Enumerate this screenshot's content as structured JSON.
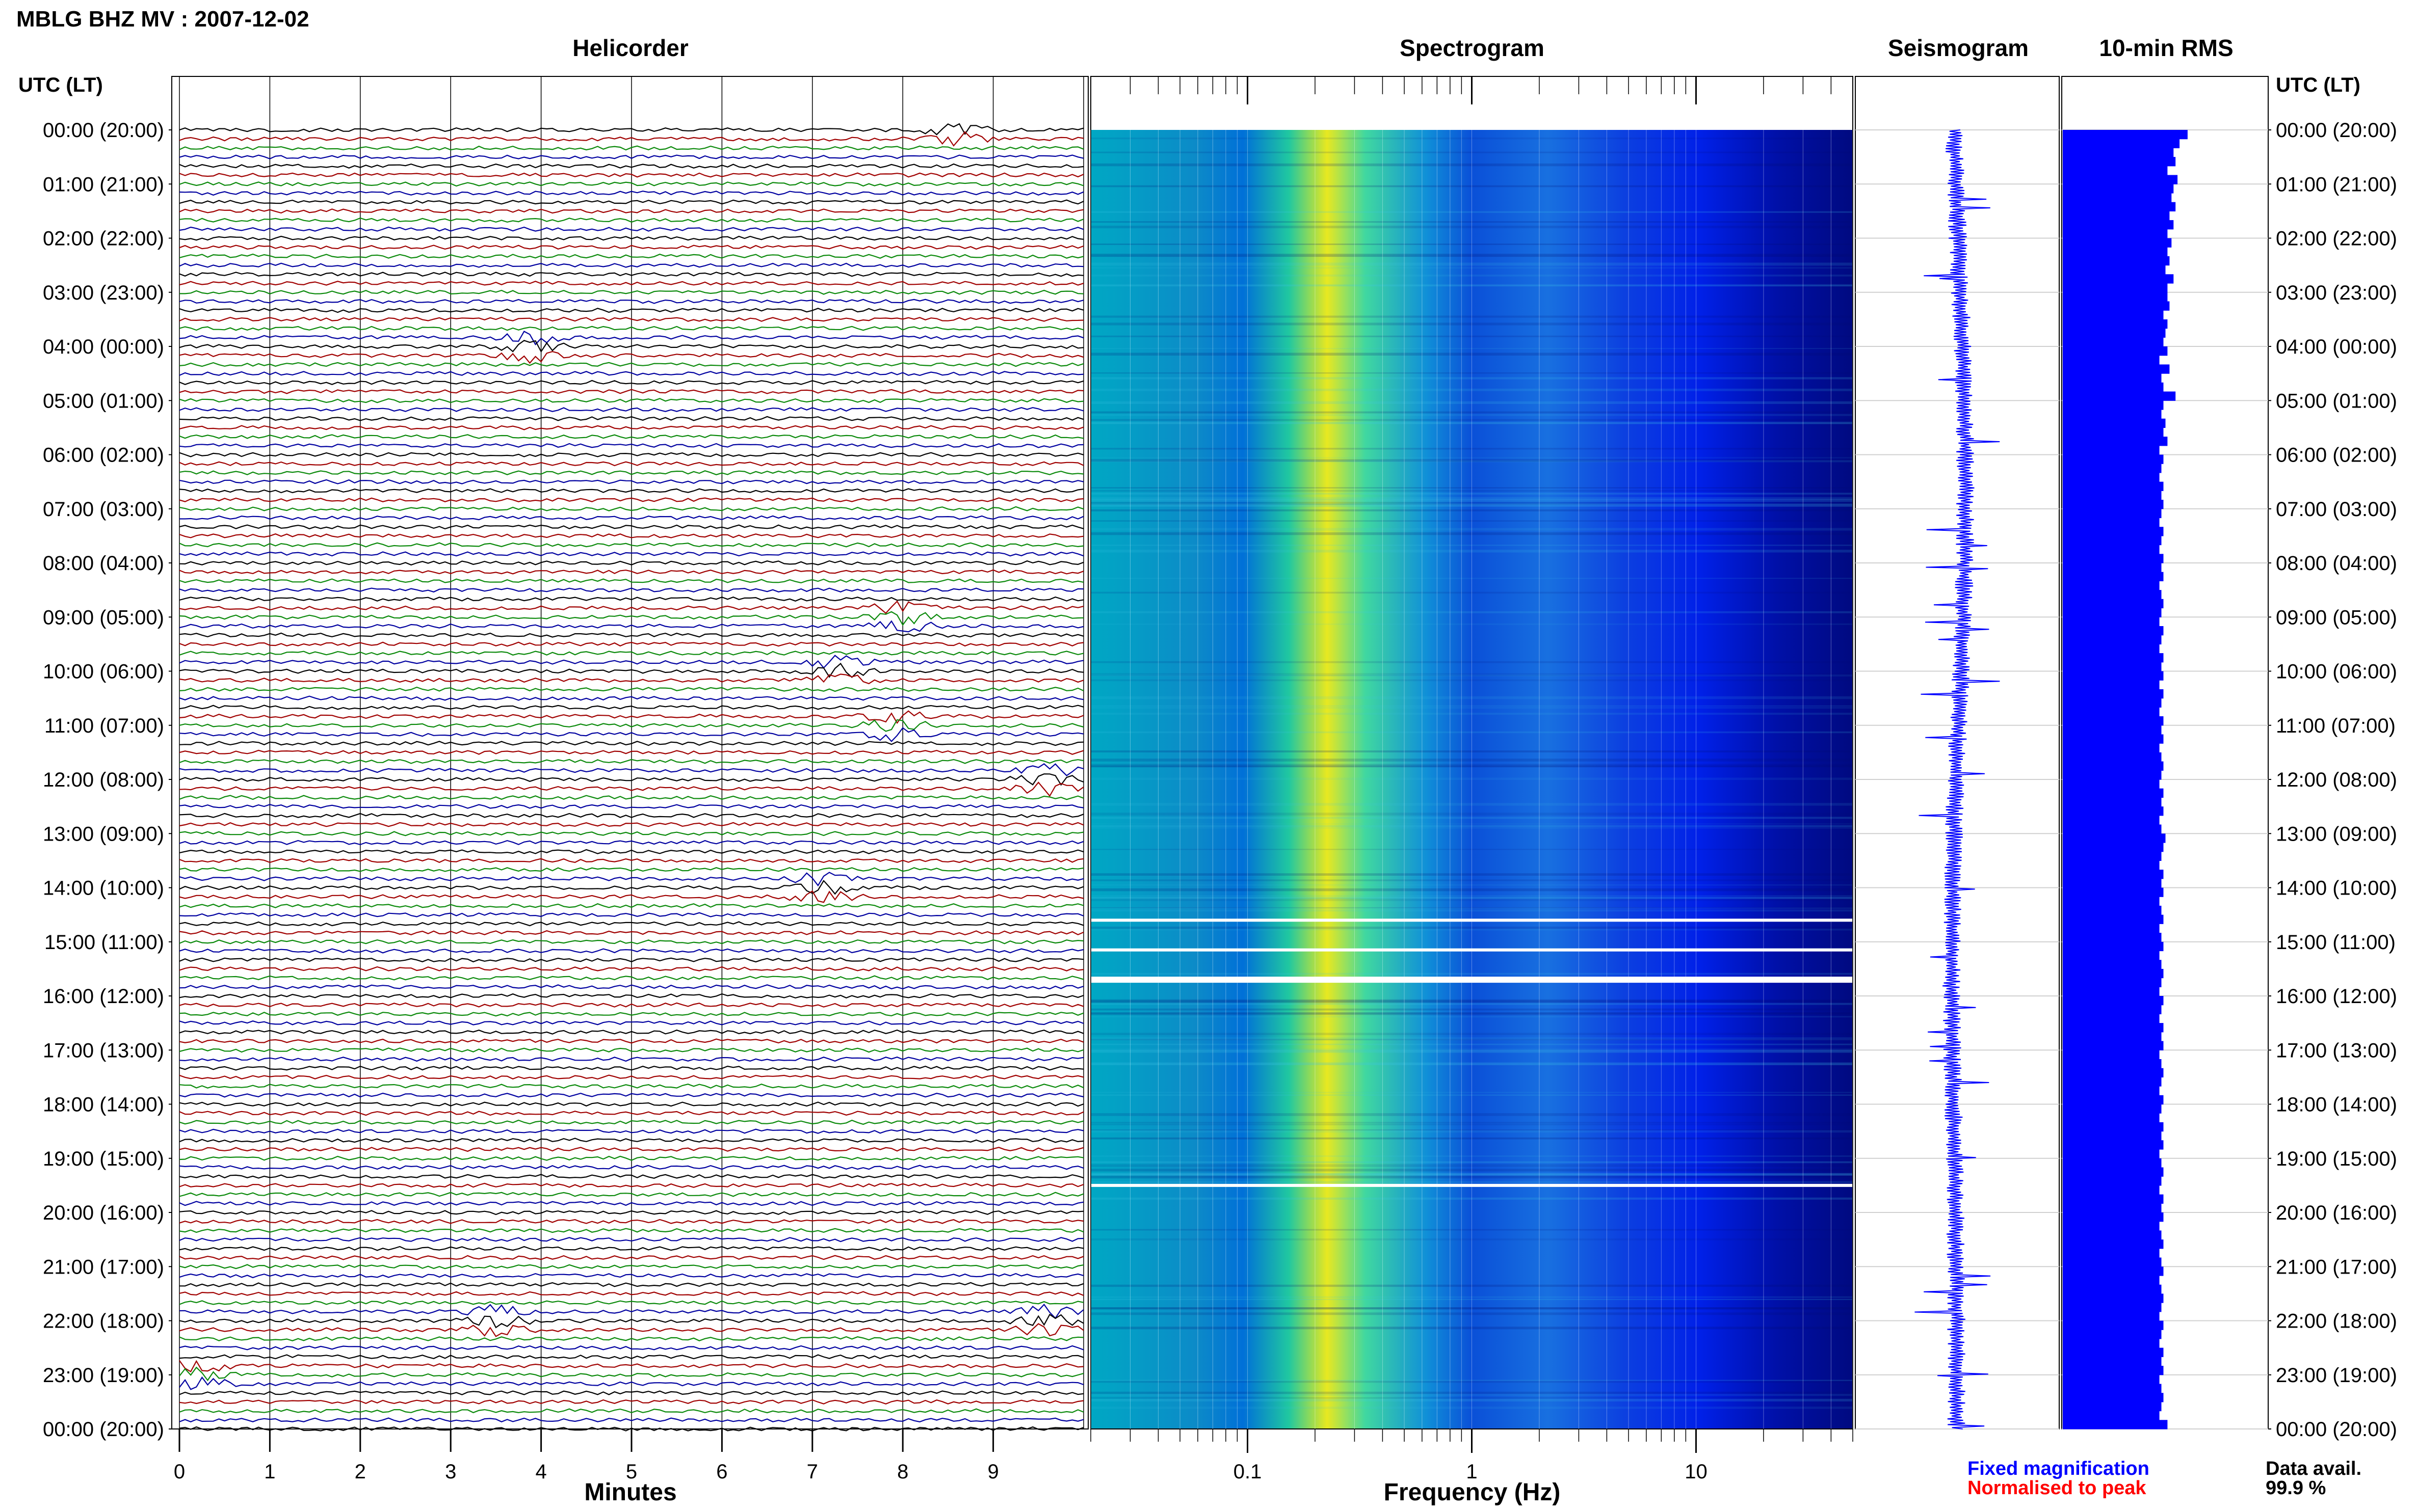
{
  "header": {
    "title": "MBLG BHZ MV : 2007-12-02",
    "time_label_left": "UTC (LT)",
    "time_label_right": "UTC (LT)"
  },
  "panels": {
    "helicorder": "Helicorder",
    "spectrogram": "Spectrogram",
    "seismogram": "Seismogram",
    "rms": "10-min RMS"
  },
  "axes": {
    "minutes_label": "Minutes",
    "frequency_label": "Frequency (Hz)",
    "minute_ticks": [
      "0",
      "1",
      "2",
      "3",
      "4",
      "5",
      "6",
      "7",
      "8",
      "9"
    ],
    "freq_ticks": [
      "0.1",
      "1",
      "10"
    ]
  },
  "time_labels": [
    "00:00 (20:00)",
    "01:00 (21:00)",
    "02:00 (22:00)",
    "03:00 (23:00)",
    "04:00 (00:00)",
    "05:00 (01:00)",
    "06:00 (02:00)",
    "07:00 (03:00)",
    "08:00 (04:00)",
    "09:00 (05:00)",
    "10:00 (06:00)",
    "11:00 (07:00)",
    "12:00 (08:00)",
    "13:00 (09:00)",
    "14:00 (10:00)",
    "15:00 (11:00)",
    "16:00 (12:00)",
    "17:00 (13:00)",
    "18:00 (14:00)",
    "19:00 (15:00)",
    "20:00 (16:00)",
    "21:00 (17:00)",
    "22:00 (18:00)",
    "23:00 (19:00)",
    "00:00 (20:00)"
  ],
  "legend": {
    "fixed": "Fixed magnification",
    "normalised": "Normalised to peak",
    "data_avail_label": "Data avail.",
    "data_avail_value": "99.9 %"
  },
  "colors": {
    "trace_cycle": [
      "#000000",
      "#a00000",
      "#0b8a0b",
      "#0000a0"
    ],
    "fixed": "#0000ff",
    "normalised": "#ff0000",
    "rms_bar": "#0000ff",
    "spectro_low": "#00a0c8",
    "spectro_peak": "#e8e820",
    "spectro_high": "#00108a"
  },
  "chart_data": {
    "type": "heatmap",
    "station": "MBLG BHZ MV",
    "date": "2007-12-02",
    "helicorder": {
      "x_unit": "minutes",
      "xlim": [
        0,
        10
      ],
      "rows_per_hour": 6,
      "hours": 24,
      "notable_events": [
        {
          "hour": 0,
          "minute": 8.6
        },
        {
          "hour": 4,
          "minute": 3.9
        },
        {
          "hour": 9,
          "minute": 8.0
        },
        {
          "hour": 10,
          "minute": 7.3
        },
        {
          "hour": 11,
          "minute": 7.9
        },
        {
          "hour": 12,
          "minute": 9.6
        },
        {
          "hour": 14,
          "minute": 7.1
        },
        {
          "hour": 22,
          "minute": 3.5
        },
        {
          "hour": 22,
          "minute": 9.6
        },
        {
          "hour": 23,
          "minute": 0.2
        }
      ]
    },
    "spectrogram": {
      "x_scale": "log",
      "xlim": [
        0.02,
        50
      ],
      "peak_frequency_hz": 0.22,
      "gaps_utc_hours": [
        14.6,
        15.15,
        15.7,
        19.5
      ]
    },
    "rms_10min": [
      0.62,
      0.58,
      0.55,
      0.56,
      0.52,
      0.57,
      0.55,
      0.54,
      0.56,
      0.53,
      0.55,
      0.52,
      0.54,
      0.52,
      0.53,
      0.51,
      0.55,
      0.52,
      0.52,
      0.53,
      0.5,
      0.52,
      0.51,
      0.5,
      0.52,
      0.48,
      0.53,
      0.49,
      0.5,
      0.56,
      0.5,
      0.49,
      0.51,
      0.5,
      0.52,
      0.48,
      0.5,
      0.49,
      0.48,
      0.5,
      0.49,
      0.5,
      0.49,
      0.48,
      0.5,
      0.49,
      0.48,
      0.5,
      0.49,
      0.5,
      0.48,
      0.49,
      0.5,
      0.49,
      0.48,
      0.5,
      0.49,
      0.48,
      0.5,
      0.49,
      0.5,
      0.48,
      0.5,
      0.49,
      0.48,
      0.5,
      0.49,
      0.5,
      0.48,
      0.49,
      0.5,
      0.49,
      0.48,
      0.5,
      0.49,
      0.5,
      0.48,
      0.49,
      0.51,
      0.5,
      0.49,
      0.48,
      0.5,
      0.49,
      0.5,
      0.48,
      0.49,
      0.5,
      0.48,
      0.49,
      0.5,
      0.48,
      0.49,
      0.5,
      0.49,
      0.48,
      0.5,
      0.49,
      0.48,
      0.5,
      0.49,
      0.5,
      0.48,
      0.49,
      0.5,
      0.49,
      0.48,
      0.5,
      0.49,
      0.48,
      0.5,
      0.49,
      0.5,
      0.48,
      0.49,
      0.5,
      0.49,
      0.48,
      0.5,
      0.49,
      0.5,
      0.48,
      0.49,
      0.5,
      0.48,
      0.49,
      0.5,
      0.48,
      0.49,
      0.5,
      0.49,
      0.48,
      0.5,
      0.49,
      0.48,
      0.5,
      0.49,
      0.5,
      0.48,
      0.49,
      0.5,
      0.49,
      0.48,
      0.52
    ]
  }
}
